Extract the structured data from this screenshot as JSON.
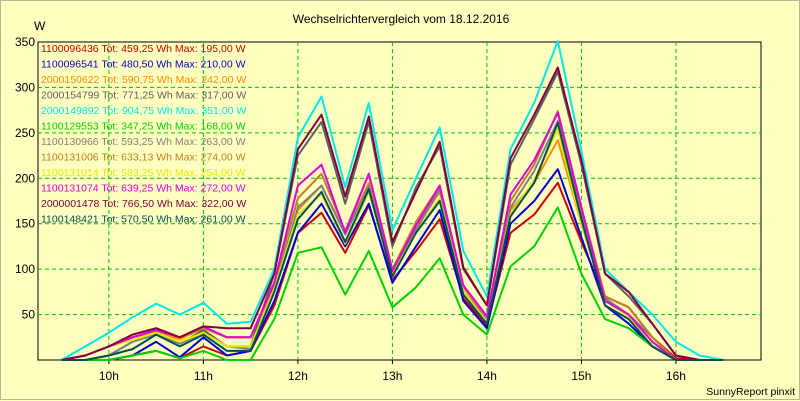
{
  "chart_data": {
    "type": "line",
    "title": "Wechselrichtervergleich vom 18.12.2016",
    "ylabel": "W",
    "footer": "SunnyReport pinxit",
    "ylim": [
      0,
      350
    ],
    "y_ticks": [
      "50",
      "100",
      "150",
      "200",
      "250",
      "300",
      "350"
    ],
    "x_ticks": [
      "10h",
      "11h",
      "12h",
      "13h",
      "14h",
      "15h",
      "16h"
    ],
    "xlim": [
      9.25,
      16.9
    ],
    "grid": true,
    "legend_position": "top-left",
    "x": [
      9.5,
      9.75,
      10.0,
      10.25,
      10.5,
      10.75,
      11.0,
      11.25,
      11.5,
      11.75,
      12.0,
      12.25,
      12.5,
      12.75,
      13.0,
      13.25,
      13.5,
      13.75,
      14.0,
      14.25,
      14.5,
      14.75,
      15.0,
      15.25,
      15.5,
      15.75,
      16.0,
      16.25,
      16.5
    ],
    "series": [
      {
        "legend": "1100096436 Tot:  459,25 Wh Max:  195,00 W",
        "color": "#d00000",
        "values": [
          0,
          0,
          0,
          5,
          10,
          2,
          15,
          5,
          10,
          60,
          140,
          162,
          118,
          170,
          88,
          120,
          155,
          68,
          38,
          140,
          160,
          195,
          130,
          70,
          58,
          25,
          2,
          0,
          0
        ]
      },
      {
        "legend": "1100096541 Tot:  480,50 Wh Max:  210,00 W",
        "color": "#0000d0",
        "values": [
          0,
          0,
          0,
          5,
          20,
          3,
          25,
          5,
          10,
          65,
          140,
          172,
          125,
          172,
          85,
          125,
          165,
          65,
          35,
          150,
          175,
          210,
          135,
          60,
          40,
          15,
          0,
          0,
          0
        ]
      },
      {
        "legend": "2000150622 Tot:  590,75 Wh Max:  242,00 W",
        "color": "#ff8c00",
        "values": [
          0,
          5,
          15,
          25,
          30,
          23,
          35,
          25,
          25,
          80,
          165,
          192,
          140,
          195,
          95,
          145,
          185,
          80,
          45,
          165,
          195,
          242,
          150,
          65,
          50,
          20,
          0,
          0,
          0
        ]
      },
      {
        "legend": "2000154799 Tot:  771,25 Wh Max:  317,00 W",
        "color": "#606060",
        "values": [
          0,
          0,
          5,
          20,
          30,
          18,
          33,
          15,
          15,
          95,
          225,
          262,
          172,
          262,
          125,
          190,
          235,
          100,
          60,
          215,
          265,
          317,
          215,
          95,
          70,
          40,
          5,
          0,
          0
        ]
      },
      {
        "legend": "2000149892 Tot:  904,75 Wh Max:  351,00 W",
        "color": "#00e8e8",
        "values": [
          0,
          15,
          30,
          47,
          62,
          50,
          63,
          40,
          42,
          100,
          245,
          290,
          190,
          283,
          143,
          200,
          256,
          120,
          70,
          232,
          283,
          351,
          230,
          100,
          75,
          50,
          20,
          5,
          0
        ]
      },
      {
        "legend": "1100129553 Tot:  347,25 Wh Max:  168,00 W",
        "color": "#00d000",
        "values": [
          0,
          0,
          0,
          5,
          10,
          2,
          10,
          0,
          0,
          45,
          118,
          124,
          72,
          120,
          58,
          80,
          112,
          50,
          28,
          103,
          125,
          168,
          95,
          45,
          35,
          15,
          0,
          0,
          0
        ]
      },
      {
        "legend": "1100130966 Tot:  593,25 Wh Max:  263,00 W",
        "color": "#808080",
        "values": [
          0,
          0,
          5,
          20,
          28,
          18,
          30,
          15,
          12,
          78,
          168,
          192,
          138,
          192,
          95,
          143,
          188,
          75,
          45,
          168,
          208,
          263,
          160,
          68,
          50,
          25,
          0,
          0,
          0
        ]
      },
      {
        "legend": "1100131006 Tot:  633,13 Wh Max:  274,00 W",
        "color": "#c08020",
        "values": [
          0,
          5,
          15,
          25,
          32,
          25,
          35,
          25,
          25,
          85,
          178,
          205,
          142,
          205,
          100,
          152,
          192,
          82,
          48,
          175,
          215,
          274,
          168,
          70,
          58,
          25,
          0,
          0,
          0
        ]
      },
      {
        "legend": "1100131014 Tot:  583,25 Wh Max:  254,00 W",
        "color": "#e8e800",
        "values": [
          0,
          5,
          15,
          22,
          30,
          20,
          30,
          15,
          15,
          78,
          160,
          183,
          128,
          185,
          95,
          140,
          178,
          75,
          42,
          160,
          198,
          254,
          150,
          65,
          48,
          20,
          0,
          0,
          0
        ]
      },
      {
        "legend": "1100131074 Tot:  639,25 Wh Max:  272,00 W",
        "color": "#e000e0",
        "values": [
          0,
          5,
          15,
          25,
          33,
          25,
          37,
          25,
          25,
          85,
          192,
          215,
          140,
          205,
          98,
          148,
          192,
          82,
          48,
          182,
          220,
          272,
          168,
          65,
          50,
          20,
          0,
          0,
          0
        ]
      },
      {
        "legend": "2000001478 Tot:  766,50 Wh Max:  322,00 W",
        "color": "#800040",
        "values": [
          0,
          5,
          15,
          28,
          35,
          25,
          37,
          35,
          35,
          95,
          232,
          270,
          180,
          268,
          130,
          185,
          240,
          102,
          60,
          222,
          270,
          322,
          220,
          95,
          75,
          40,
          5,
          0,
          0
        ]
      },
      {
        "legend": "1100148421 Tot:  570,50 Wh Max:  261,00 W",
        "color": "#005050",
        "values": [
          0,
          0,
          5,
          12,
          28,
          15,
          28,
          10,
          10,
          75,
          155,
          185,
          130,
          188,
          92,
          140,
          175,
          72,
          40,
          158,
          195,
          261,
          155,
          60,
          45,
          15,
          0,
          0,
          0
        ]
      }
    ]
  }
}
